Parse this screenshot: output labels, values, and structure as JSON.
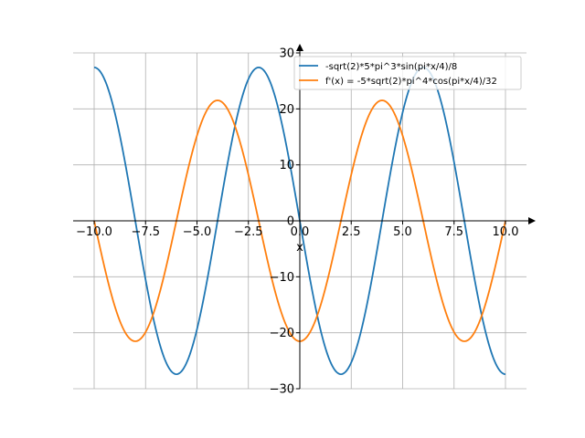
{
  "chart_data": {
    "type": "line",
    "xlabel": "x",
    "ylabel": "",
    "xlim": [
      -10,
      10
    ],
    "ylim": [
      -30,
      30
    ],
    "grid": true,
    "legend_position": "top-right",
    "x_ticks": [
      -10.0,
      -7.5,
      -5.0,
      -2.5,
      0.0,
      2.5,
      5.0,
      7.5,
      10.0
    ],
    "x_tick_labels": [
      "−10.0",
      "−7.5",
      "−5.0",
      "−2.5",
      "0.0",
      "2.5",
      "5.0",
      "7.5",
      "10.0"
    ],
    "y_ticks": [
      -30,
      -20,
      -10,
      0,
      10,
      20,
      30
    ],
    "y_tick_labels": [
      "−30",
      "−20",
      "−10",
      "0",
      "10",
      "20",
      "30"
    ],
    "x": [
      -10,
      -9,
      -8,
      -7,
      -6,
      -5,
      -4,
      -3,
      -2,
      -1,
      0,
      1,
      2,
      3,
      4,
      5,
      6,
      7,
      8,
      9,
      10
    ],
    "series": [
      {
        "name": "-sqrt(2)*5*pi^3*sin(pi*x/4)/8",
        "color": "#1f77b4",
        "values": [
          27.4,
          19.38,
          0.0,
          -19.38,
          -27.4,
          -19.38,
          0.0,
          19.38,
          27.4,
          19.38,
          0.0,
          -19.38,
          -27.4,
          -19.38,
          0.0,
          19.38,
          27.4,
          19.38,
          0.0,
          -19.38,
          -27.4
        ]
      },
      {
        "name": "f'(x) = -5*sqrt(2)*pi^4*cos(pi*x/4)/32",
        "color": "#ff7f0e",
        "values": [
          0.0,
          -15.22,
          -21.52,
          -15.22,
          0.0,
          15.22,
          21.52,
          15.22,
          0.0,
          -15.22,
          -21.52,
          -15.22,
          0.0,
          15.22,
          21.52,
          15.22,
          0.0,
          -15.22,
          -21.52,
          -15.22,
          0.0
        ]
      }
    ]
  }
}
